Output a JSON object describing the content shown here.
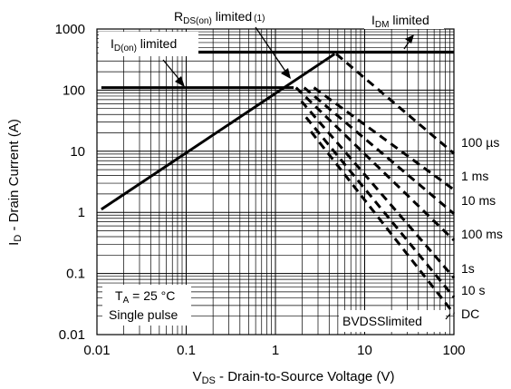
{
  "chart_data": {
    "type": "line",
    "x_scale": "log",
    "y_scale": "log",
    "xlim": [
      0.01,
      100
    ],
    "ylim": [
      0.01,
      1000
    ],
    "grid": true,
    "xlabel": {
      "main": "V",
      "sub": "DS",
      "rest": " - Drain-to-Source Voltage (V)"
    },
    "ylabel": {
      "main": "I",
      "sub": "D",
      "rest": " - Drain Current (A)"
    },
    "x_ticks": [
      {
        "value": 0.01,
        "label": "0.01"
      },
      {
        "value": 0.1,
        "label": "0.1"
      },
      {
        "value": 1,
        "label": "1"
      },
      {
        "value": 10,
        "label": "10"
      },
      {
        "value": 100,
        "label": "100"
      }
    ],
    "y_ticks": [
      {
        "value": 0.01,
        "label": "0.01"
      },
      {
        "value": 0.1,
        "label": "0.1"
      },
      {
        "value": 1,
        "label": "1"
      },
      {
        "value": 10,
        "label": "10"
      },
      {
        "value": 100,
        "label": "100"
      },
      {
        "value": 1000,
        "label": "1000"
      }
    ],
    "limit_lines": [
      {
        "id": "rds-on",
        "points": [
          [
            0.0112,
            1.12
          ],
          [
            4.6,
            390
          ]
        ]
      },
      {
        "id": "idm",
        "points": [
          [
            0.0112,
            420
          ],
          [
            100,
            420
          ]
        ]
      },
      {
        "id": "id-on",
        "points": [
          [
            0.0112,
            110
          ],
          [
            1.6,
            110
          ]
        ]
      }
    ],
    "series": [
      {
        "name": "100 µs",
        "points": [
          [
            4.8,
            390
          ],
          [
            100,
            9.2
          ]
        ]
      },
      {
        "name": "1 ms",
        "points": [
          [
            2.7,
            110
          ],
          [
            100,
            2.35
          ]
        ]
      },
      {
        "name": "10 ms",
        "points": [
          [
            2.1,
            110
          ],
          [
            100,
            0.95
          ]
        ]
      },
      {
        "name": "100 ms",
        "points": [
          [
            1.7,
            110
          ],
          [
            100,
            0.35
          ]
        ]
      },
      {
        "name": "1s",
        "points": [
          [
            1.95,
            66
          ],
          [
            100,
            0.085
          ]
        ]
      },
      {
        "name": "10 s",
        "points": [
          [
            2.2,
            36
          ],
          [
            100,
            0.041
          ]
        ]
      },
      {
        "name": "DC",
        "points": [
          [
            2.5,
            21
          ],
          [
            100,
            0.022
          ]
        ]
      }
    ],
    "annotations": {
      "rds": {
        "main": "R",
        "sub": "DS(on)",
        "rest": " limited",
        "note": "(1)"
      },
      "idm": {
        "main": "I",
        "sub": "DM",
        "rest": " limited"
      },
      "id_on": {
        "main": "I",
        "sub": "D(on)",
        "rest": " limited"
      },
      "ta": {
        "main": "T",
        "sub": "A",
        "rest": " = 25 °C"
      },
      "pulse": "Single pulse",
      "bvdss": "BVDSSlimited"
    }
  }
}
